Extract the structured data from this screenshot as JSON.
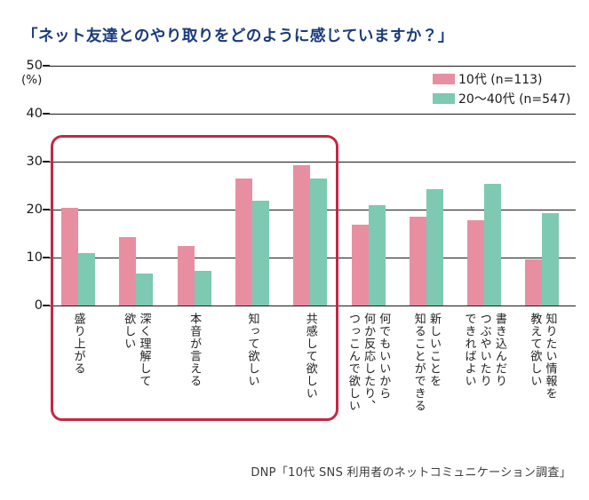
{
  "title": "「ネット友達とのやり取りをどのように感じていますか？」",
  "source": "DNP「10代 SNS 利用者のネットコミュニケーション調査」",
  "y_axis": {
    "unit_label": "(%)",
    "ticks": [
      50,
      40,
      30,
      20,
      10,
      0
    ]
  },
  "legend": [
    {
      "label": "10代 (n=113)",
      "color": "#e78fa1"
    },
    {
      "label": "20～40代 (n=547)",
      "color": "#7ec9b1"
    }
  ],
  "colors": {
    "title_navy": "#1b3b7c",
    "highlight_red": "#c42846",
    "grid_black": "#1a1a1a",
    "bar_pink": "#e78fa1",
    "bar_teal": "#7ec9b1"
  },
  "chart_data": {
    "type": "bar",
    "title": "「ネット友達とのやり取りをどのように感じていますか？」",
    "xlabel": "",
    "ylabel": "(%)",
    "ylim": [
      0,
      50
    ],
    "grid": true,
    "legend_position": "top-right",
    "categories": [
      "盛り上がる",
      "深く理解して\n欲しい",
      "本音が言える",
      "知って欲しい",
      "共感して欲しい",
      "何でもいいから\n何か反応したり、\nつっこんで欲しい",
      "新しいことを\n知ることができる",
      "書き込んだり\nつぶやいたり\nできればよい",
      "知りたい情報を\n教えて欲しい"
    ],
    "series": [
      {
        "name": "10代 (n=113)",
        "color": "#e78fa1",
        "values": [
          20.4,
          14.2,
          12.4,
          26.5,
          29.2,
          16.8,
          18.6,
          17.7,
          9.7
        ]
      },
      {
        "name": "20～40代 (n=547)",
        "color": "#7ec9b1",
        "values": [
          11.0,
          6.6,
          7.3,
          21.9,
          26.5,
          21.0,
          24.3,
          25.4,
          19.2
        ]
      }
    ],
    "highlighted_category_range": [
      0,
      4
    ],
    "annotation": "赤枠は左から5項目（盛り上がる〜共感して欲しい）を強調"
  }
}
